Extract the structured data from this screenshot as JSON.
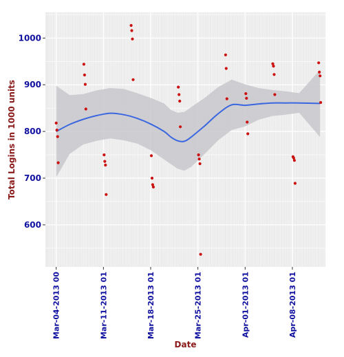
{
  "chart_data": {
    "type": "scatter",
    "title": "",
    "xlabel": "Date",
    "ylabel": "Total Logins in 1000 units",
    "x_ticks": [
      {
        "value": 0,
        "label": "Mar-04-2013 00"
      },
      {
        "value": 7,
        "label": "Mar-11-2013 01"
      },
      {
        "value": 14,
        "label": "Mar-18-2013 01"
      },
      {
        "value": 21,
        "label": "Mar-25-2013 01"
      },
      {
        "value": 28,
        "label": "Apr-01-2013 01"
      },
      {
        "value": 35,
        "label": "Apr-08-2013 01"
      }
    ],
    "y_ticks": [
      600,
      700,
      800,
      900,
      1000
    ],
    "xlim": [
      -1.6,
      39.9
    ],
    "ylim": [
      510,
      1055
    ],
    "grid": true,
    "colors": {
      "points": "#cc1111",
      "smooth_line": "#3a66e0",
      "ribbon": "#c8c8cc",
      "panel": "#ebebeb",
      "grid": "#ffffff",
      "tick_text": "#1010a0",
      "axis_title": "#8b1a1a"
    },
    "series": [
      {
        "type": "scatter",
        "points": [
          {
            "x": 0.0,
            "y": 818
          },
          {
            "x": 0.1,
            "y": 803
          },
          {
            "x": 0.2,
            "y": 789
          },
          {
            "x": 0.3,
            "y": 733
          },
          {
            "x": 4.1,
            "y": 944
          },
          {
            "x": 4.2,
            "y": 921
          },
          {
            "x": 4.3,
            "y": 901
          },
          {
            "x": 4.4,
            "y": 848
          },
          {
            "x": 7.1,
            "y": 750
          },
          {
            "x": 7.2,
            "y": 736
          },
          {
            "x": 7.3,
            "y": 728
          },
          {
            "x": 7.4,
            "y": 665
          },
          {
            "x": 11.1,
            "y": 1027
          },
          {
            "x": 11.2,
            "y": 1016
          },
          {
            "x": 11.3,
            "y": 998
          },
          {
            "x": 11.4,
            "y": 911
          },
          {
            "x": 14.1,
            "y": 748
          },
          {
            "x": 14.2,
            "y": 700
          },
          {
            "x": 14.3,
            "y": 686
          },
          {
            "x": 14.4,
            "y": 681
          },
          {
            "x": 18.1,
            "y": 895
          },
          {
            "x": 18.2,
            "y": 879
          },
          {
            "x": 18.3,
            "y": 865
          },
          {
            "x": 18.4,
            "y": 810
          },
          {
            "x": 21.1,
            "y": 750
          },
          {
            "x": 21.2,
            "y": 741
          },
          {
            "x": 21.3,
            "y": 731
          },
          {
            "x": 21.4,
            "y": 537
          },
          {
            "x": 25.1,
            "y": 964
          },
          {
            "x": 25.2,
            "y": 935
          },
          {
            "x": 25.3,
            "y": 870
          },
          {
            "x": 28.1,
            "y": 881
          },
          {
            "x": 28.2,
            "y": 871
          },
          {
            "x": 28.3,
            "y": 820
          },
          {
            "x": 28.4,
            "y": 795
          },
          {
            "x": 32.1,
            "y": 945
          },
          {
            "x": 32.2,
            "y": 940
          },
          {
            "x": 32.3,
            "y": 922
          },
          {
            "x": 32.4,
            "y": 879
          },
          {
            "x": 35.1,
            "y": 746
          },
          {
            "x": 35.2,
            "y": 743
          },
          {
            "x": 35.3,
            "y": 738
          },
          {
            "x": 35.4,
            "y": 689
          },
          {
            "x": 38.9,
            "y": 947
          },
          {
            "x": 39.0,
            "y": 927
          },
          {
            "x": 39.1,
            "y": 919
          },
          {
            "x": 39.2,
            "y": 862
          }
        ]
      },
      {
        "type": "line",
        "smooth": true,
        "points": [
          {
            "x": 0,
            "y": 800
          },
          {
            "x": 2,
            "y": 815
          },
          {
            "x": 4,
            "y": 826
          },
          {
            "x": 6,
            "y": 834
          },
          {
            "x": 8,
            "y": 839
          },
          {
            "x": 10,
            "y": 836
          },
          {
            "x": 12,
            "y": 828
          },
          {
            "x": 14,
            "y": 816
          },
          {
            "x": 16,
            "y": 800
          },
          {
            "x": 17,
            "y": 788
          },
          {
            "x": 18,
            "y": 780
          },
          {
            "x": 19,
            "y": 779
          },
          {
            "x": 20,
            "y": 788
          },
          {
            "x": 22,
            "y": 812
          },
          {
            "x": 24,
            "y": 838
          },
          {
            "x": 26,
            "y": 857
          },
          {
            "x": 28,
            "y": 856
          },
          {
            "x": 30,
            "y": 859
          },
          {
            "x": 32,
            "y": 861
          },
          {
            "x": 34,
            "y": 861
          },
          {
            "x": 36,
            "y": 861
          },
          {
            "x": 39.1,
            "y": 860
          }
        ],
        "band_upper": [
          898,
          878,
          880,
          888,
          893,
          891,
          882,
          872,
          860,
          846,
          840,
          842,
          852,
          872,
          895,
          911,
          901,
          893,
          889,
          886,
          882,
          932
        ],
        "band_lower": [
          702,
          752,
          772,
          780,
          785,
          781,
          774,
          760,
          740,
          730,
          720,
          716,
          724,
          752,
          781,
          803,
          811,
          825,
          833,
          836,
          840,
          788
        ]
      }
    ]
  }
}
